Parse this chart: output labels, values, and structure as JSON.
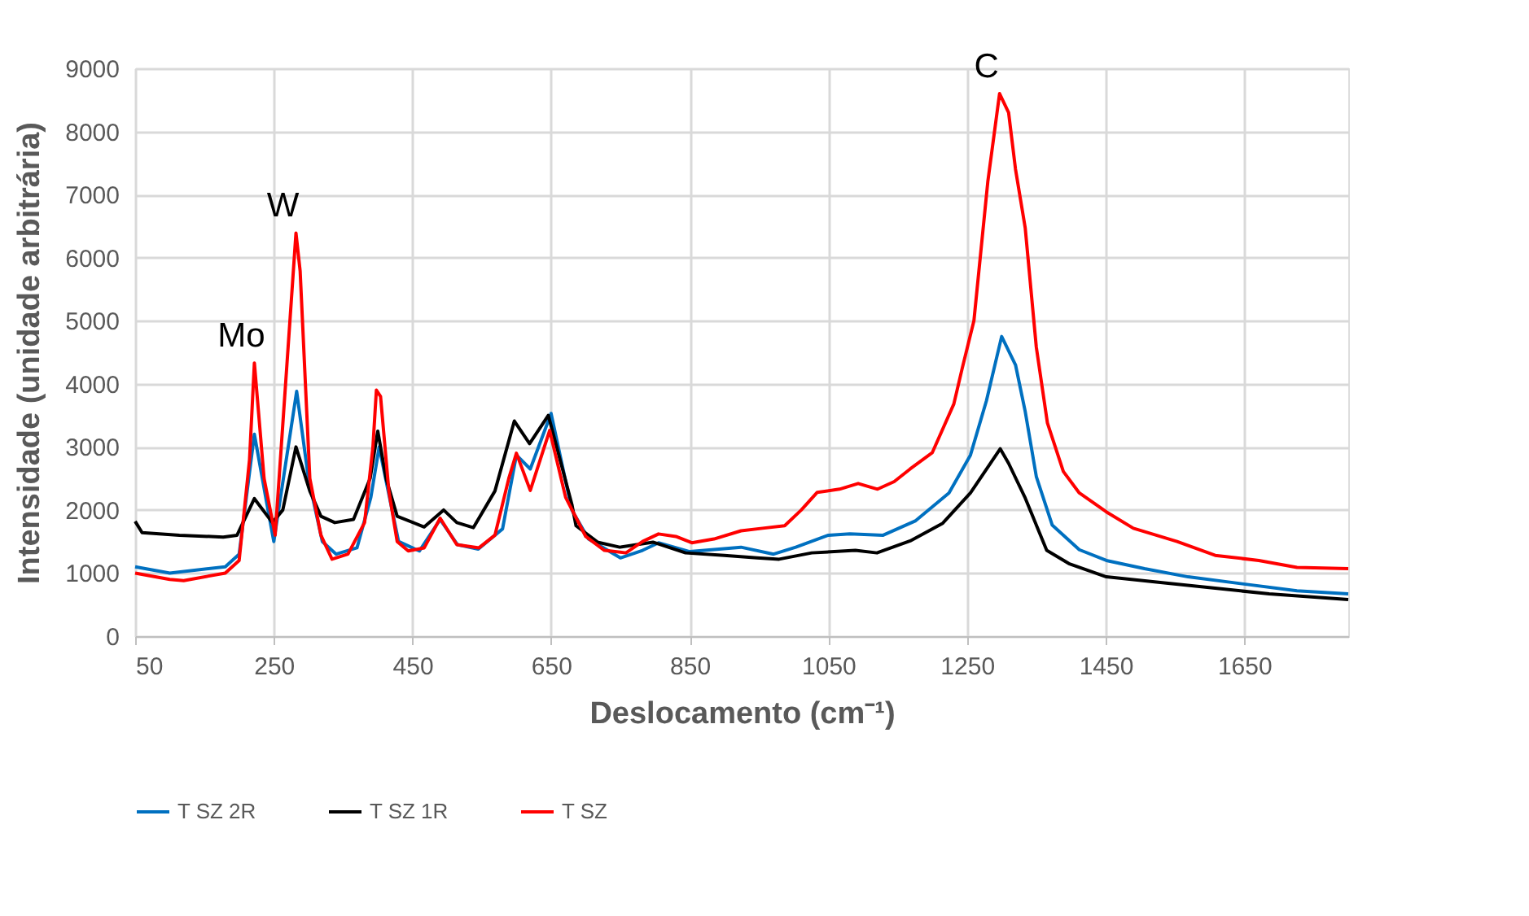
{
  "chart_data": {
    "type": "line",
    "xlabel": "Deslocamento (cm⁻¹)",
    "ylabel": "Intensidade (unidade arbitrária)",
    "xlim": [
      50,
      1800
    ],
    "xticks": [
      50,
      250,
      450,
      650,
      850,
      1050,
      1250,
      1450,
      1650
    ],
    "ylim": [
      0,
      9000
    ],
    "yticks": [
      0,
      1000,
      2000,
      3000,
      4000,
      5000,
      6000,
      7000,
      8000,
      9000
    ],
    "grid": true,
    "legend": "bottom",
    "marker": "none",
    "line_style": "solid",
    "annotations": [
      {
        "text": "Mo",
        "x": 222,
        "y": 4330
      },
      {
        "text": "W",
        "x": 282,
        "y": 6390
      },
      {
        "text": "C",
        "x": 1297,
        "y": 8600
      }
    ],
    "series": [
      {
        "name": "T SZ 2R",
        "color": "#0070c0",
        "x": [
          50,
          100,
          180,
          200,
          222,
          240,
          250,
          283,
          300,
          320,
          340,
          370,
          390,
          402,
          415,
          430,
          460,
          490,
          515,
          545,
          580,
          600,
          620,
          650,
          680,
          704,
          750,
          782,
          805,
          850,
          924,
          971,
          1003,
          1050,
          1081,
          1129,
          1176,
          1224,
          1255,
          1278,
          1300,
          1320,
          1334,
          1350,
          1373,
          1412,
          1451,
          1506,
          1569,
          1647,
          1726,
          1800
        ],
        "values": [
          1100,
          1000,
          1100,
          1300,
          3200,
          2100,
          1500,
          3880,
          2500,
          1500,
          1300,
          1400,
          2200,
          3000,
          2300,
          1500,
          1350,
          1850,
          1450,
          1380,
          1700,
          2870,
          2650,
          3530,
          2000,
          1540,
          1240,
          1360,
          1480,
          1340,
          1410,
          1300,
          1410,
          1600,
          1620,
          1600,
          1830,
          2270,
          2870,
          3730,
          4750,
          4300,
          3560,
          2530,
          1760,
          1370,
          1200,
          1070,
          940,
          830,
          720,
          670
        ]
      },
      {
        "name": "T SZ 1R",
        "color": "#000000",
        "x": [
          50,
          60,
          114,
          177,
          197,
          222,
          248,
          263,
          282,
          302,
          318,
          338,
          365,
          389,
          400,
          412,
          428,
          467,
          495,
          514,
          538,
          569,
          597,
          619,
          646,
          680,
          686,
          717,
          749,
          797,
          844,
          900,
          947,
          979,
          1026,
          1089,
          1120,
          1168,
          1215,
          1255,
          1298,
          1310,
          1334,
          1365,
          1397,
          1451,
          1529,
          1608,
          1686,
          1800
        ],
        "values": [
          1820,
          1640,
          1600,
          1570,
          1600,
          2180,
          1800,
          2000,
          3000,
          2300,
          1900,
          1800,
          1850,
          2500,
          3250,
          2500,
          1900,
          1730,
          2000,
          1800,
          1720,
          2300,
          3410,
          3050,
          3500,
          2090,
          1750,
          1490,
          1410,
          1490,
          1320,
          1280,
          1240,
          1220,
          1320,
          1360,
          1320,
          1510,
          1790,
          2270,
          2970,
          2740,
          2190,
          1360,
          1150,
          940,
          850,
          760,
          670,
          580
        ]
      },
      {
        "name": "T SZ",
        "color": "#ff0000",
        "x": [
          50,
          100,
          120,
          180,
          200,
          215,
          222,
          236,
          252,
          282,
          288,
          302,
          318,
          334,
          357,
          381,
          393,
          398,
          404,
          416,
          428,
          444,
          467,
          490,
          514,
          546,
          569,
          589,
          600,
          620,
          648,
          671,
          700,
          727,
          758,
          782,
          805,
          830,
          853,
          885,
          924,
          955,
          987,
          1011,
          1034,
          1066,
          1093,
          1121,
          1145,
          1168,
          1200,
          1231,
          1243,
          1260,
          1280,
          1297,
          1310,
          1320,
          1334,
          1350,
          1366,
          1389,
          1412,
          1451,
          1490,
          1553,
          1608,
          1671,
          1726,
          1800
        ],
        "values": [
          1000,
          900,
          880,
          1000,
          1200,
          2800,
          4330,
          2500,
          1600,
          6390,
          5790,
          2500,
          1600,
          1220,
          1300,
          1800,
          3000,
          3900,
          3800,
          2300,
          1500,
          1350,
          1400,
          1870,
          1450,
          1400,
          1600,
          2500,
          2900,
          2310,
          3260,
          2200,
          1580,
          1360,
          1320,
          1500,
          1620,
          1580,
          1480,
          1540,
          1670,
          1710,
          1750,
          2000,
          2280,
          2330,
          2420,
          2330,
          2450,
          2650,
          2910,
          3680,
          4240,
          5000,
          7200,
          8600,
          8300,
          7400,
          6470,
          4580,
          3380,
          2610,
          2270,
          1970,
          1710,
          1500,
          1280,
          1200,
          1090,
          1070
        ]
      }
    ]
  }
}
